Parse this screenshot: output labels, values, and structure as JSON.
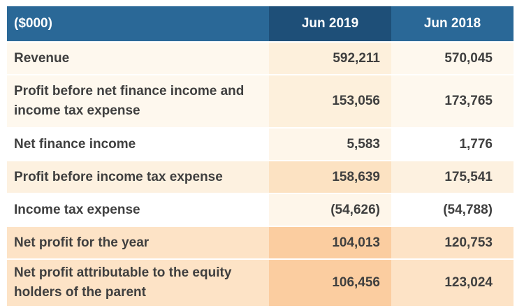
{
  "table": {
    "headers": {
      "label": "($000)",
      "col2019": "Jun 2019",
      "col2018": "Jun 2018"
    },
    "rows": [
      {
        "label": "Revenue",
        "jun2019": "592,211",
        "jun2018": "570,045"
      },
      {
        "label": "Profit before net finance income and income tax expense",
        "jun2019": "153,056",
        "jun2018": "173,765"
      },
      {
        "label": "Net finance income",
        "jun2019": "5,583",
        "jun2018": "1,776"
      },
      {
        "label": "Profit before income tax expense",
        "jun2019": "158,639",
        "jun2018": "175,541"
      },
      {
        "label": "Income tax expense",
        "jun2019": "(54,626)",
        "jun2018": "(54,788)"
      },
      {
        "label": "Net profit for the year",
        "jun2019": "104,013",
        "jun2018": "120,753"
      },
      {
        "label": "Net profit attributable to the equity holders of the parent",
        "jun2019": "106,456",
        "jun2018": "123,024"
      }
    ]
  },
  "colors": {
    "header_bg": "#2a6897",
    "header_highlight_bg": "#1e4f78",
    "header_text": "#ffffff",
    "body_text": "#3f3f3f",
    "row_tint_light": "#fef8ee",
    "row_tint_highlight": "#fde3c6"
  }
}
